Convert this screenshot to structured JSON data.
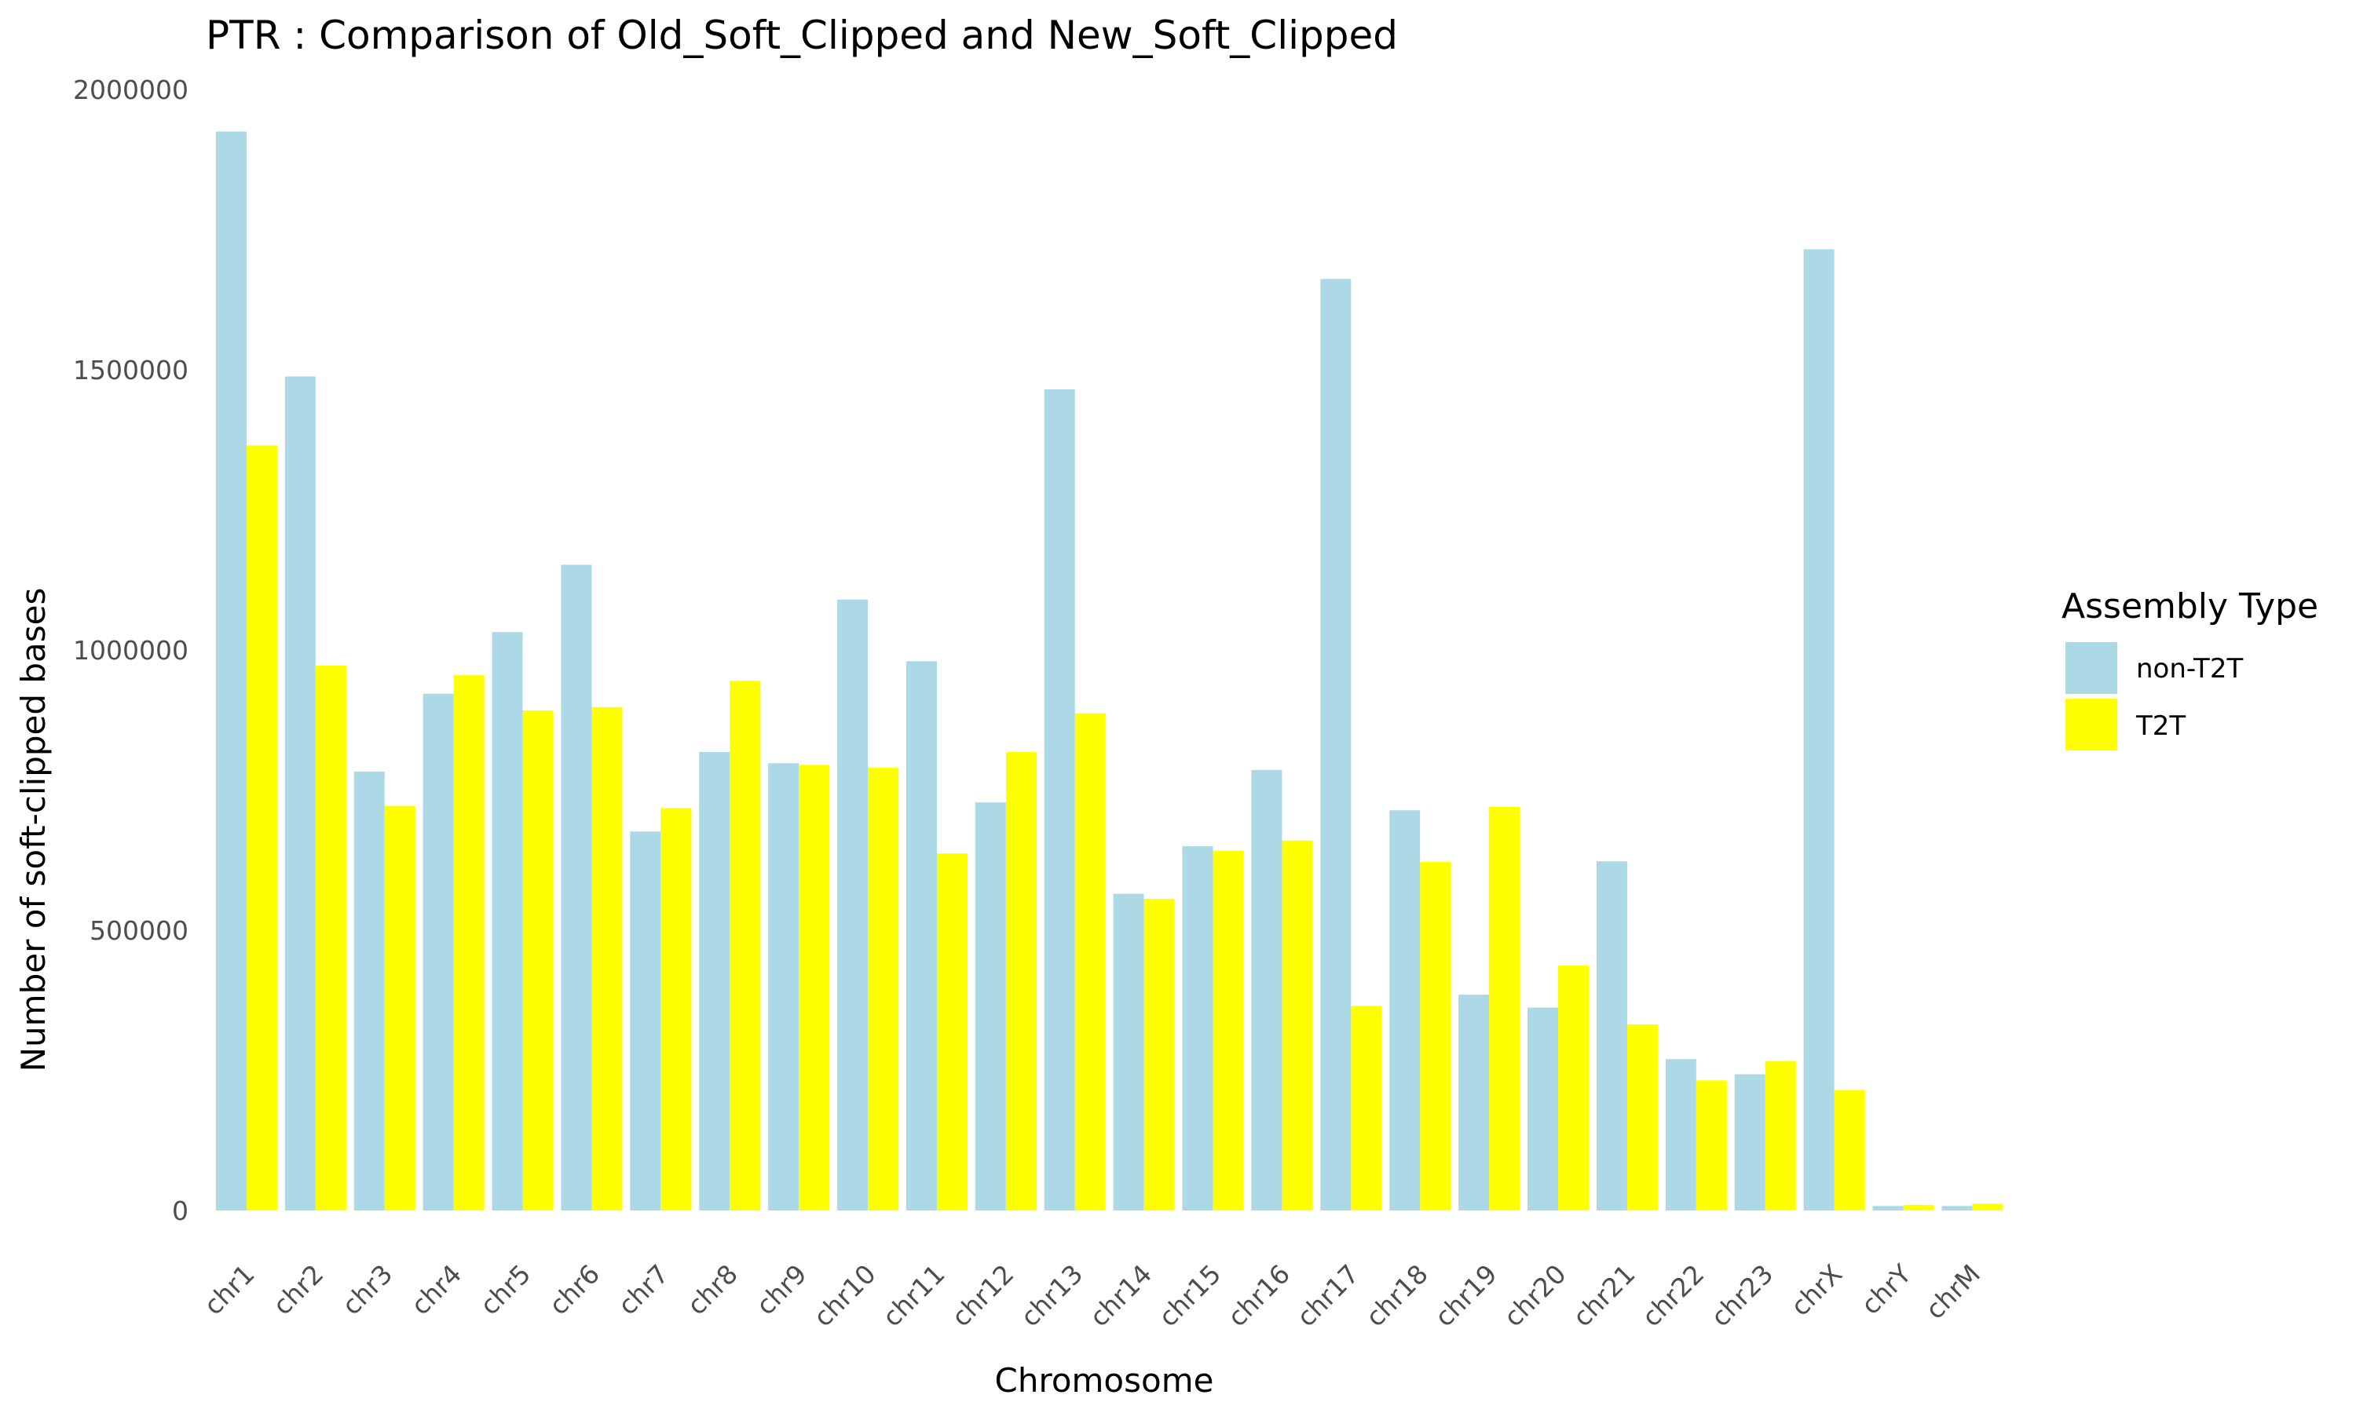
{
  "chart_data": {
    "type": "bar",
    "title": "PTR : Comparison of Old_Soft_Clipped and New_Soft_Clipped",
    "xlabel": "Chromosome",
    "ylabel": "Number of soft-clipped bases",
    "ylim": [
      0,
      2000000
    ],
    "yticks": [
      "0",
      "500000",
      "1000000",
      "1500000",
      "2000000"
    ],
    "grid": false,
    "legend_position": "right",
    "legend_title": "Assembly Type",
    "categories": [
      "chr1",
      "chr2",
      "chr3",
      "chr4",
      "chr5",
      "chr6",
      "chr7",
      "chr8",
      "chr9",
      "chr10",
      "chr11",
      "chr12",
      "chr13",
      "chr14",
      "chr15",
      "chr16",
      "chr17",
      "chr18",
      "chr19",
      "chr20",
      "chr21",
      "chr22",
      "chr23",
      "chrX",
      "chrY",
      "chrM"
    ],
    "series": [
      {
        "name": "non-T2T",
        "color": "#add8e6",
        "values": [
          1925000,
          1488000,
          783000,
          922000,
          1032000,
          1152000,
          676000,
          818000,
          798000,
          1090000,
          980000,
          728000,
          1465000,
          565000,
          650000,
          786000,
          1662000,
          714000,
          385000,
          362000,
          623000,
          270000,
          243000,
          1715000,
          8000,
          8000
        ]
      },
      {
        "name": "T2T",
        "color": "#ffff00",
        "values": [
          1365000,
          972000,
          722000,
          955000,
          892000,
          898000,
          718000,
          945000,
          795000,
          790000,
          637000,
          818000,
          887000,
          556000,
          642000,
          660000,
          365000,
          622000,
          720000,
          437000,
          332000,
          232000,
          266000,
          215000,
          10000,
          12000
        ]
      }
    ]
  }
}
